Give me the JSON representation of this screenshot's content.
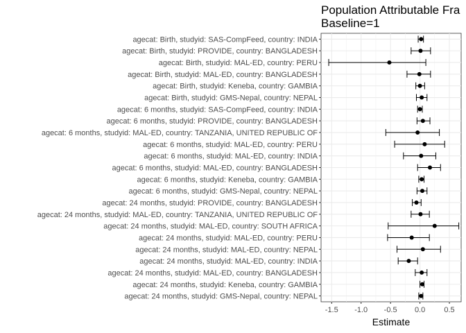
{
  "chart_data": {
    "type": "forest",
    "title": "Population Attributable Fra",
    "subtitle": "Baseline=1",
    "xlabel": "Estimate",
    "ylabel": "",
    "xlim": [
      -1.68,
      0.7
    ],
    "xticks": [
      "-1.5",
      "-1.0",
      "-0.5",
      "0.0",
      "0.5"
    ],
    "xtick_values": [
      -1.5,
      -1.0,
      -0.5,
      0.0,
      0.5
    ],
    "grid": true,
    "rows": [
      {
        "label": "agecat: Birth, studyid: SAS-CompFeed, country: INDIA",
        "estimate": 0.02,
        "lower": -0.03,
        "upper": 0.06
      },
      {
        "label": "agecat: Birth, studyid: PROVIDE, country: BANGLADESH",
        "estimate": 0.01,
        "lower": -0.15,
        "upper": 0.18
      },
      {
        "label": "agecat: Birth, studyid: MAL-ED, country: PERU",
        "estimate": -0.52,
        "lower": -1.55,
        "upper": 0.1
      },
      {
        "label": "agecat: Birth, studyid: MAL-ED, country: BANGLADESH",
        "estimate": -0.01,
        "lower": -0.22,
        "upper": 0.18
      },
      {
        "label": "agecat: Birth, studyid: Keneba, country: GAMBIA",
        "estimate": 0.0,
        "lower": -0.07,
        "upper": 0.08
      },
      {
        "label": "agecat: Birth, studyid: GMS-Nepal, country: NEPAL",
        "estimate": 0.03,
        "lower": -0.06,
        "upper": 0.12
      },
      {
        "label": "agecat: 6 months, studyid: SAS-CompFeed, country: INDIA",
        "estimate": 0.0,
        "lower": -0.04,
        "upper": 0.04
      },
      {
        "label": "agecat: 6 months, studyid: PROVIDE, country: BANGLADESH",
        "estimate": 0.05,
        "lower": -0.05,
        "upper": 0.17
      },
      {
        "label": "agecat: 6 months, studyid: MAL-ED, country: TANZANIA, UNITED REPUBLIC OF",
        "estimate": -0.04,
        "lower": -0.58,
        "upper": 0.33
      },
      {
        "label": "agecat: 6 months, studyid: MAL-ED, country: PERU",
        "estimate": 0.08,
        "lower": -0.43,
        "upper": 0.42
      },
      {
        "label": "agecat: 6 months, studyid: MAL-ED, country: INDIA",
        "estimate": 0.02,
        "lower": -0.28,
        "upper": 0.27
      },
      {
        "label": "agecat: 6 months, studyid: MAL-ED, country: BANGLADESH",
        "estimate": 0.17,
        "lower": -0.04,
        "upper": 0.35
      },
      {
        "label": "agecat: 6 months, studyid: Keneba, country: GAMBIA",
        "estimate": 0.03,
        "lower": -0.02,
        "upper": 0.07
      },
      {
        "label": "agecat: 6 months, studyid: GMS-Nepal, country: NEPAL",
        "estimate": 0.04,
        "lower": -0.05,
        "upper": 0.12
      },
      {
        "label": "agecat: 24 months, studyid: PROVIDE, country: BANGLADESH",
        "estimate": -0.06,
        "lower": -0.13,
        "upper": 0.02
      },
      {
        "label": "agecat: 24 months, studyid: MAL-ED, country: TANZANIA, UNITED REPUBLIC OF",
        "estimate": 0.01,
        "lower": -0.15,
        "upper": 0.16
      },
      {
        "label": "agecat: 24 months, studyid: MAL-ED, country: SOUTH AFRICA",
        "estimate": 0.25,
        "lower": -0.54,
        "upper": 0.66
      },
      {
        "label": "agecat: 24 months, studyid: MAL-ED, country: PERU",
        "estimate": -0.14,
        "lower": -0.55,
        "upper": 0.16
      },
      {
        "label": "agecat: 24 months, studyid: MAL-ED, country: NEPAL",
        "estimate": 0.05,
        "lower": -0.39,
        "upper": 0.35
      },
      {
        "label": "agecat: 24 months, studyid: MAL-ED, country: INDIA",
        "estimate": -0.19,
        "lower": -0.37,
        "upper": -0.04
      },
      {
        "label": "agecat: 24 months, studyid: MAL-ED, country: BANGLADESH",
        "estimate": 0.03,
        "lower": -0.08,
        "upper": 0.12
      },
      {
        "label": "agecat: 24 months, studyid: Keneba, country: GAMBIA",
        "estimate": 0.04,
        "lower": 0.0,
        "upper": 0.07
      },
      {
        "label": "agecat: 24 months, studyid: GMS-Nepal, country: NEPAL",
        "estimate": 0.02,
        "lower": -0.02,
        "upper": 0.05
      }
    ]
  }
}
